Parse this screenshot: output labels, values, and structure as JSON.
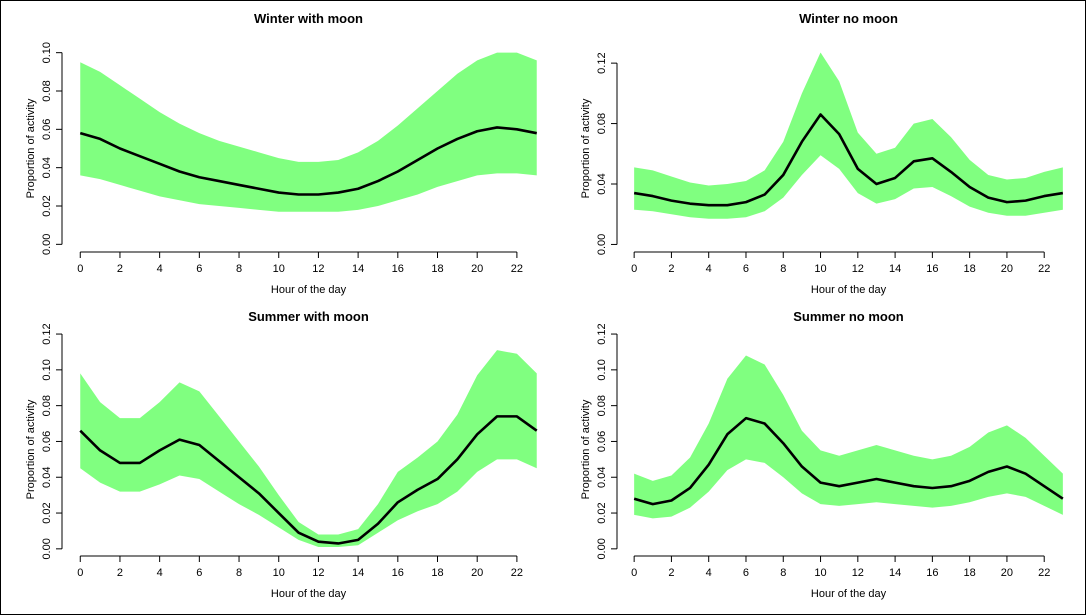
{
  "chart_data": [
    {
      "type": "band-line",
      "title": "Winter with moon",
      "x_label": "Hour of the day",
      "y_label": "Proportion of activity",
      "x": [
        0,
        1,
        2,
        3,
        4,
        5,
        6,
        7,
        8,
        9,
        10,
        11,
        12,
        13,
        14,
        15,
        16,
        17,
        18,
        19,
        20,
        21,
        22,
        23
      ],
      "values": [
        0.058,
        0.055,
        0.05,
        0.046,
        0.042,
        0.038,
        0.035,
        0.033,
        0.031,
        0.029,
        0.027,
        0.026,
        0.026,
        0.027,
        0.029,
        0.033,
        0.038,
        0.044,
        0.05,
        0.055,
        0.059,
        0.061,
        0.06,
        0.058
      ],
      "upper": [
        0.095,
        0.09,
        0.083,
        0.076,
        0.069,
        0.063,
        0.058,
        0.054,
        0.051,
        0.048,
        0.045,
        0.043,
        0.043,
        0.044,
        0.048,
        0.054,
        0.062,
        0.071,
        0.08,
        0.089,
        0.096,
        0.1,
        0.1,
        0.096
      ],
      "lower": [
        0.036,
        0.034,
        0.031,
        0.028,
        0.025,
        0.023,
        0.021,
        0.02,
        0.019,
        0.018,
        0.017,
        0.017,
        0.017,
        0.017,
        0.018,
        0.02,
        0.023,
        0.026,
        0.03,
        0.033,
        0.036,
        0.037,
        0.037,
        0.036
      ],
      "color": "#000000",
      "band_color": "#80ff80",
      "xlim": [
        -0.92,
        23.92
      ],
      "xticks": [
        0,
        2,
        4,
        6,
        8,
        10,
        12,
        14,
        16,
        18,
        20,
        22
      ],
      "ylim": [
        -0.004,
        0.104
      ],
      "yticks": [
        {
          "value": 0,
          "label": "0.00"
        },
        0.02,
        0.04,
        0.06,
        0.08,
        {
          "value": 0.1,
          "label": "0.10"
        }
      ]
    },
    {
      "type": "band-line",
      "title": "Winter no moon",
      "x_label": "Hour of the day",
      "y_label": "Proportion of activity",
      "x": [
        0,
        1,
        2,
        3,
        4,
        5,
        6,
        7,
        8,
        9,
        10,
        11,
        12,
        13,
        14,
        15,
        16,
        17,
        18,
        19,
        20,
        21,
        22,
        23
      ],
      "values": [
        0.034,
        0.032,
        0.029,
        0.027,
        0.026,
        0.026,
        0.028,
        0.033,
        0.046,
        0.068,
        0.086,
        0.073,
        0.05,
        0.04,
        0.044,
        0.055,
        0.057,
        0.048,
        0.038,
        0.031,
        0.028,
        0.029,
        0.032,
        0.034
      ],
      "upper": [
        0.051,
        0.049,
        0.045,
        0.041,
        0.039,
        0.04,
        0.042,
        0.049,
        0.068,
        0.1,
        0.127,
        0.108,
        0.074,
        0.06,
        0.064,
        0.08,
        0.083,
        0.071,
        0.056,
        0.046,
        0.043,
        0.044,
        0.048,
        0.051
      ],
      "lower": [
        0.023,
        0.022,
        0.02,
        0.018,
        0.017,
        0.017,
        0.018,
        0.022,
        0.031,
        0.046,
        0.059,
        0.05,
        0.034,
        0.027,
        0.03,
        0.037,
        0.038,
        0.032,
        0.025,
        0.021,
        0.019,
        0.019,
        0.021,
        0.023
      ],
      "color": "#000000",
      "band_color": "#80ff80",
      "xlim": [
        -0.92,
        23.92
      ],
      "xticks": [
        0,
        2,
        4,
        6,
        8,
        10,
        12,
        14,
        16,
        18,
        20,
        22
      ],
      "ylim": [
        -0.005,
        0.132
      ],
      "yticks": [
        {
          "value": 0,
          "label": "0.00"
        },
        0.04,
        0.08,
        0.12
      ]
    },
    {
      "type": "band-line",
      "title": "Summer with moon",
      "x_label": "Hour of the day",
      "y_label": "Proportion of activity",
      "x": [
        0,
        1,
        2,
        3,
        4,
        5,
        6,
        7,
        8,
        9,
        10,
        11,
        12,
        13,
        14,
        15,
        16,
        17,
        18,
        19,
        20,
        21,
        22,
        23
      ],
      "values": [
        0.066,
        0.055,
        0.048,
        0.048,
        0.055,
        0.061,
        0.058,
        0.049,
        0.04,
        0.031,
        0.02,
        0.009,
        0.004,
        0.003,
        0.005,
        0.014,
        0.026,
        0.033,
        0.039,
        0.05,
        0.064,
        0.074,
        0.074,
        0.066
      ],
      "upper": [
        0.098,
        0.082,
        0.073,
        0.073,
        0.082,
        0.093,
        0.088,
        0.074,
        0.06,
        0.046,
        0.03,
        0.015,
        0.008,
        0.008,
        0.011,
        0.025,
        0.043,
        0.051,
        0.06,
        0.075,
        0.097,
        0.111,
        0.109,
        0.098
      ],
      "lower": [
        0.045,
        0.037,
        0.032,
        0.032,
        0.036,
        0.041,
        0.039,
        0.032,
        0.025,
        0.019,
        0.012,
        0.005,
        0.001,
        0.001,
        0.002,
        0.009,
        0.016,
        0.021,
        0.025,
        0.032,
        0.043,
        0.05,
        0.05,
        0.045
      ],
      "color": "#000000",
      "band_color": "#80ff80",
      "xlim": [
        -0.92,
        23.92
      ],
      "xticks": [
        0,
        2,
        4,
        6,
        8,
        10,
        12,
        14,
        16,
        18,
        20,
        22
      ],
      "ylim": [
        -0.004,
        0.115
      ],
      "yticks": [
        {
          "value": 0,
          "label": "0.00"
        },
        0.02,
        0.04,
        0.06,
        0.08,
        {
          "value": 0.1,
          "label": "0.10"
        },
        0.12
      ]
    },
    {
      "type": "band-line",
      "title": "Summer no moon",
      "x_label": "Hour of the day",
      "y_label": "Proportion of activity",
      "x": [
        0,
        1,
        2,
        3,
        4,
        5,
        6,
        7,
        8,
        9,
        10,
        11,
        12,
        13,
        14,
        15,
        16,
        17,
        18,
        19,
        20,
        21,
        22,
        23
      ],
      "values": [
        0.028,
        0.025,
        0.027,
        0.034,
        0.047,
        0.064,
        0.073,
        0.07,
        0.059,
        0.046,
        0.037,
        0.035,
        0.037,
        0.039,
        0.037,
        0.035,
        0.034,
        0.035,
        0.038,
        0.043,
        0.046,
        0.042,
        0.035,
        0.028
      ],
      "upper": [
        0.042,
        0.038,
        0.041,
        0.051,
        0.07,
        0.095,
        0.108,
        0.103,
        0.086,
        0.066,
        0.055,
        0.052,
        0.055,
        0.058,
        0.055,
        0.052,
        0.05,
        0.052,
        0.057,
        0.065,
        0.069,
        0.062,
        0.052,
        0.042
      ],
      "lower": [
        0.019,
        0.017,
        0.018,
        0.023,
        0.032,
        0.044,
        0.05,
        0.048,
        0.04,
        0.031,
        0.025,
        0.024,
        0.025,
        0.026,
        0.025,
        0.024,
        0.023,
        0.024,
        0.026,
        0.029,
        0.031,
        0.029,
        0.024,
        0.019
      ],
      "color": "#000000",
      "band_color": "#80ff80",
      "xlim": [
        -0.92,
        23.92
      ],
      "xticks": [
        0,
        2,
        4,
        6,
        8,
        10,
        12,
        14,
        16,
        18,
        20,
        22
      ],
      "ylim": [
        -0.004,
        0.115
      ],
      "yticks": [
        {
          "value": 0,
          "label": "0.00"
        },
        0.02,
        0.04,
        0.06,
        0.08,
        {
          "value": 0.1,
          "label": "0.10"
        },
        0.12
      ]
    }
  ]
}
